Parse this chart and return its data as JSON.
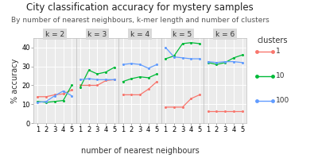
{
  "title": "City classification accuracy for mystery samples",
  "subtitle": "By number of nearest neighbours, k-mer length and number of clusters",
  "xlabel": "number of nearest neighbours",
  "ylabel": "% accuracy",
  "x": [
    1,
    2,
    3,
    4,
    5
  ],
  "panels": [
    "k = 2",
    "k = 3",
    "k = 4",
    "k = 5",
    "k = 6"
  ],
  "series_keys": [
    "1",
    "10",
    "100"
  ],
  "series": {
    "1": {
      "color": "#F8766D",
      "marker": "o",
      "label": "1"
    },
    "10": {
      "color": "#00BA38",
      "marker": "o",
      "label": "10"
    },
    "100": {
      "color": "#619CFF",
      "marker": "o",
      "label": "100"
    }
  },
  "data": {
    "k2": {
      "1": [
        14.0,
        14.0,
        15.0,
        15.5,
        17.5
      ],
      "10": [
        11.5,
        11.0,
        11.5,
        12.0,
        20.0
      ],
      "100": [
        11.0,
        11.5,
        14.5,
        17.0,
        14.5
      ]
    },
    "k3": {
      "1": [
        20.0,
        20.0,
        20.0,
        22.5,
        23.0
      ],
      "10": [
        19.0,
        28.0,
        26.0,
        27.0,
        29.5
      ],
      "100": [
        23.0,
        23.5,
        23.0,
        23.0,
        23.0
      ]
    },
    "k4": {
      "1": [
        15.0,
        15.0,
        15.0,
        18.0,
        22.0
      ],
      "10": [
        22.0,
        23.5,
        24.5,
        24.0,
        26.0
      ],
      "100": [
        31.0,
        31.5,
        31.0,
        29.0,
        31.0
      ]
    },
    "k5": {
      "1": [
        8.5,
        8.5,
        8.5,
        13.0,
        15.0
      ],
      "10": [
        34.0,
        35.5,
        42.0,
        42.5,
        42.0
      ],
      "100": [
        40.0,
        35.0,
        34.5,
        34.0,
        34.0
      ]
    },
    "k6": {
      "1": [
        6.5,
        6.5,
        6.5,
        6.5,
        6.5
      ],
      "10": [
        32.0,
        31.0,
        32.0,
        34.5,
        36.0
      ],
      "100": [
        32.5,
        32.0,
        32.5,
        32.5,
        32.0
      ]
    }
  },
  "ylim": [
    0,
    45
  ],
  "yticks": [
    0,
    10,
    20,
    30,
    40
  ],
  "panel_bg": "#EBEBEB",
  "grid_color": "#FFFFFF",
  "fig_bg": "#FFFFFF",
  "title_fontsize": 8.5,
  "subtitle_fontsize": 6.5,
  "axis_label_fontsize": 7.0,
  "tick_fontsize": 6.0,
  "legend_title_fontsize": 7.0,
  "legend_fontsize": 6.5,
  "panel_label_fontsize": 6.5,
  "panel_label_bg": "#D9D9D9"
}
